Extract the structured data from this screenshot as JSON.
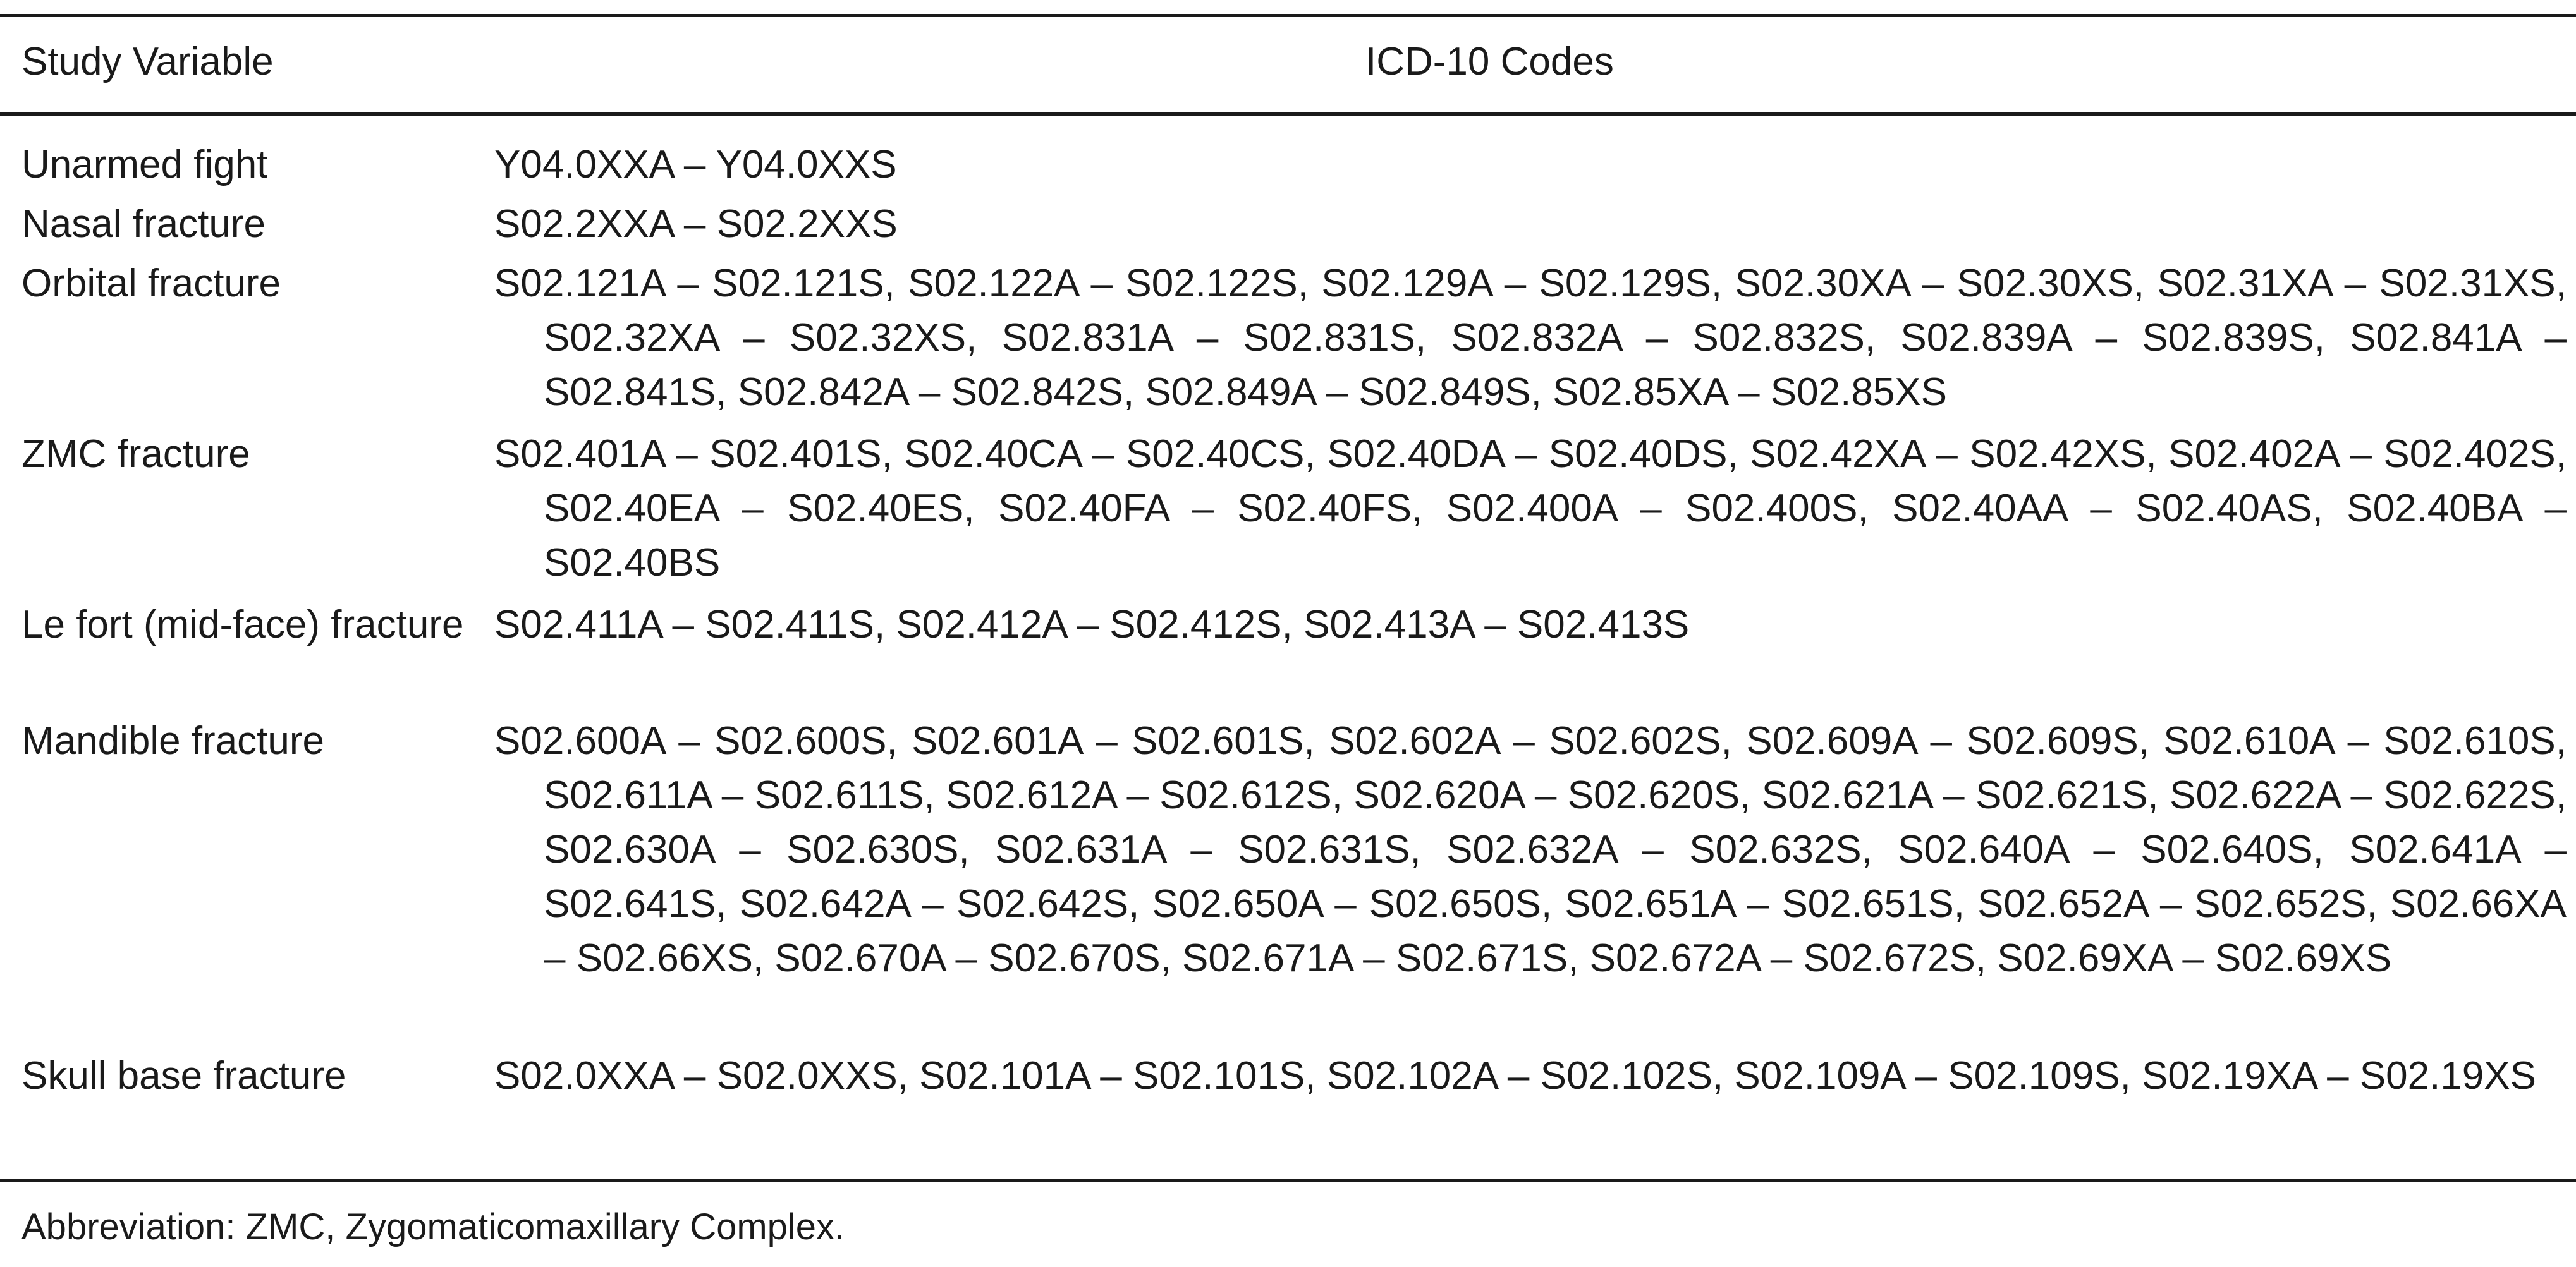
{
  "table": {
    "headers": {
      "study_variable": "Study Variable",
      "icd_codes": "ICD-10 Codes"
    },
    "rows": [
      {
        "variable": "Unarmed fight",
        "codes": "Y04.0XXA – Y04.0XXS"
      },
      {
        "variable": "Nasal fracture",
        "codes": "S02.2XXA – S02.2XXS"
      },
      {
        "variable": "Orbital fracture",
        "codes": "S02.121A – S02.121S, S02.122A – S02.122S, S02.129A – S02.129S, S02.30XA – S02.30XS, S02.31XA – S02.31XS, S02.32XA – S02.32XS, S02.831A – S02.831S, S02.832A – S02.832S, S02.839A – S02.839S, S02.841A – S02.841S, S02.842A – S02.842S, S02.849A – S02.849S, S02.85XA – S02.85XS"
      },
      {
        "variable": "ZMC fracture",
        "codes": "S02.401A – S02.401S, S02.40CA – S02.40CS, S02.40DA – S02.40DS, S02.42XA – S02.42XS, S02.402A – S02.402S, S02.40EA – S02.40ES, S02.40FA – S02.40FS, S02.400A – S02.400S, S02.40AA – S02.40AS, S02.40BA – S02.40BS"
      },
      {
        "variable": "Le fort (mid-face) fracture",
        "codes": "S02.411A – S02.411S, S02.412A – S02.412S, S02.413A – S02.413S"
      },
      {
        "variable": "Mandible fracture",
        "codes": "S02.600A – S02.600S, S02.601A – S02.601S, S02.602A – S02.602S, S02.609A – S02.609S, S02.610A – S02.610S, S02.611A – S02.611S, S02.612A – S02.612S, S02.620A – S02.620S, S02.621A – S02.621S, S02.622A – S02.622S, S02.630A – S02.630S, S02.631A – S02.631S, S02.632A – S02.632S, S02.640A – S02.640S, S02.641A – S02.641S, S02.642A – S02.642S, S02.650A – S02.650S, S02.651A – S02.651S, S02.652A – S02.652S, S02.66XA – S02.66XS, S02.670A – S02.670S, S02.671A – S02.671S, S02.672A – S02.672S, S02.69XA – S02.69XS"
      },
      {
        "variable": "Skull base fracture",
        "codes": "S02.0XXA – S02.0XXS, S02.101A – S02.101S, S02.102A – S02.102S, S02.109A – S02.109S, S02.19XA – S02.19XS"
      }
    ]
  },
  "footnote": "Abbreviation: ZMC, Zygomaticomaxillary Complex."
}
